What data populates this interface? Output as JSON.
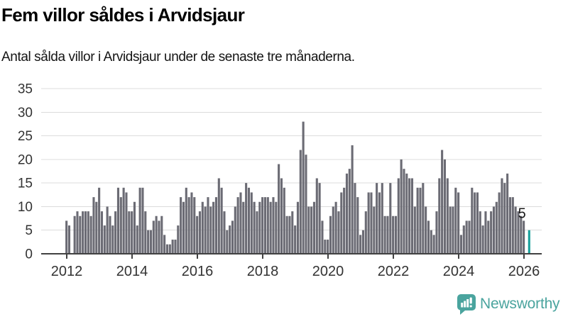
{
  "header": {
    "title": "Fem villor såldes i Arvidsjaur",
    "subtitle": "Antal sålda villor i Arvidsjaur under de senaste tre månaderna."
  },
  "chart_data": {
    "type": "bar",
    "title": "Fem villor såldes i Arvidsjaur",
    "subtitle": "Antal sålda villor i Arvidsjaur under de senaste tre månaderna.",
    "x_start": "2012-01",
    "x_end": "2026-03",
    "ylim": [
      0,
      35
    ],
    "y_ticks": [
      0,
      5,
      10,
      15,
      20,
      25,
      30,
      35
    ],
    "x_ticks": [
      2012,
      2014,
      2016,
      2018,
      2020,
      2022,
      2024,
      2026
    ],
    "grid": true,
    "values": [
      7,
      6,
      0,
      8,
      9,
      8,
      9,
      9,
      9,
      8,
      12,
      11,
      14,
      9,
      6,
      10,
      8,
      6,
      9,
      14,
      12,
      14,
      13,
      9,
      9,
      11,
      6,
      14,
      14,
      9,
      5,
      5,
      7,
      8,
      7,
      8,
      4,
      2,
      2,
      3,
      3,
      6,
      12,
      11,
      14,
      12,
      13,
      12,
      8,
      9,
      11,
      10,
      12,
      10,
      11,
      12,
      16,
      14,
      9,
      5,
      6,
      7,
      10,
      12,
      13,
      11,
      15,
      14,
      13,
      11,
      9,
      11,
      12,
      12,
      12,
      11,
      12,
      11,
      19,
      16,
      14,
      8,
      8,
      9,
      6,
      11,
      22,
      28,
      21,
      10,
      10,
      11,
      16,
      15,
      7,
      3,
      3,
      8,
      10,
      11,
      9,
      13,
      14,
      17,
      18,
      23,
      15,
      12,
      4,
      5,
      9,
      13,
      13,
      10,
      15,
      13,
      15,
      8,
      8,
      15,
      8,
      8,
      16,
      20,
      18,
      17,
      16,
      16,
      10,
      14,
      14,
      15,
      10,
      7,
      5,
      4,
      9,
      16,
      22,
      20,
      16,
      10,
      10,
      14,
      13,
      4,
      6,
      7,
      7,
      14,
      13,
      13,
      9,
      6,
      9,
      7,
      9,
      10,
      11,
      13,
      16,
      15,
      17,
      12,
      12,
      10,
      9,
      8,
      7,
      0,
      5
    ],
    "highlight_index": 170,
    "highlight_value": 5,
    "highlight_label": "5",
    "colors": {
      "bar": "#6b6b74",
      "highlight": "#18a09c",
      "axis": "#414141",
      "grid": "#dcdcdc",
      "tick_text": "#333333",
      "annotation_text": "#1a1a1a"
    }
  },
  "footer": {
    "brand": "Newsworthy",
    "brand_color": "#4aa49e"
  }
}
